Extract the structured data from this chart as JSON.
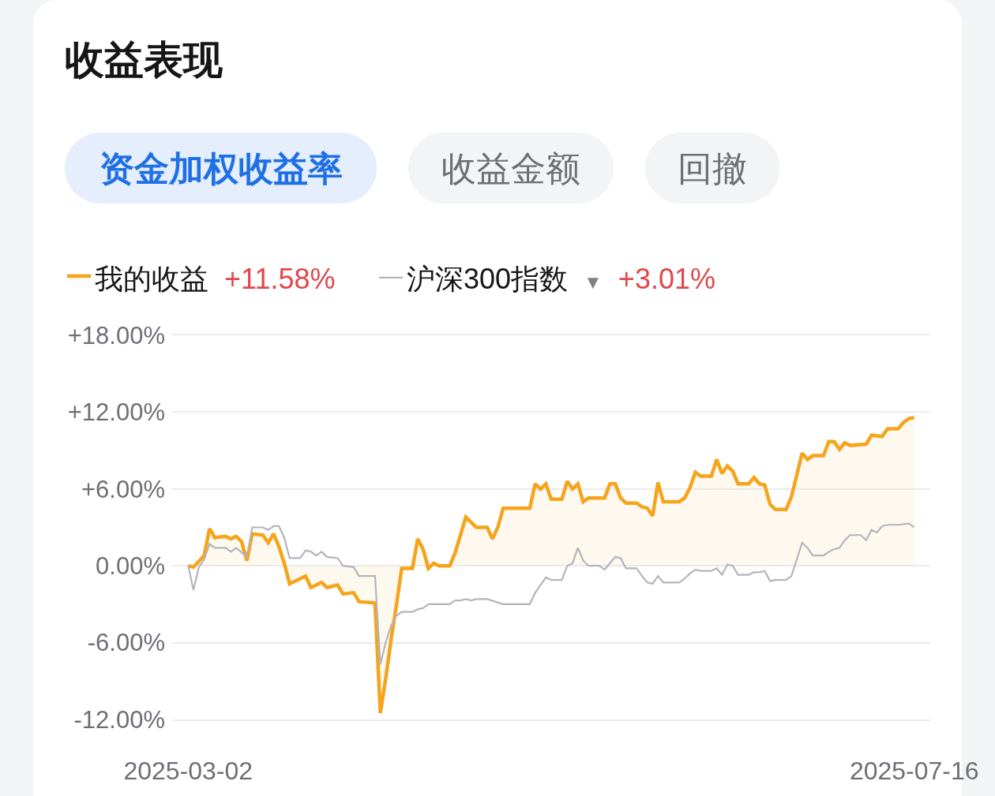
{
  "chart_data": {
    "type": "line",
    "title": "收益表现",
    "annotations": [
      "资金加权收益率",
      "收益金额",
      "回撤",
      "+11.58%",
      "▼",
      "+3.01%"
    ],
    "xlim": [
      "2025-02-27",
      "2025-07-19"
    ],
    "xticks": [
      "2025-03-02",
      "2025-07-16"
    ],
    "ylim": [
      -12,
      18
    ],
    "yticks": [
      {
        "value": 18,
        "label": "+18.00%"
      },
      {
        "value": 12,
        "label": "+12.00%"
      },
      {
        "value": 6,
        "label": "+6.00%"
      },
      {
        "value": 0,
        "label": "0.00%"
      },
      {
        "value": -6,
        "label": "-6.00%"
      },
      {
        "value": -12,
        "label": "-12.00%"
      }
    ],
    "grid": "y",
    "legend": "top left",
    "marker": "none",
    "line_style": "solid",
    "series": [
      {
        "name": "我的收益",
        "type": "area",
        "color": "#f5a41c",
        "x": [
          "2025-03-02",
          "2025-03-03",
          "2025-03-05",
          "2025-03-06",
          "2025-03-07",
          "2025-03-09",
          "2025-03-10",
          "2025-03-11",
          "2025-03-12",
          "2025-03-13",
          "2025-03-14",
          "2025-03-16",
          "2025-03-17",
          "2025-03-18",
          "2025-03-19",
          "2025-03-20",
          "2025-03-21",
          "2025-03-24",
          "2025-03-25",
          "2025-03-27",
          "2025-03-28",
          "2025-03-30",
          "2025-03-31",
          "2025-04-02",
          "2025-04-03",
          "2025-04-06",
          "2025-04-07",
          "2025-04-08",
          "2025-04-09",
          "2025-04-10",
          "2025-04-11",
          "2025-04-13",
          "2025-04-14",
          "2025-04-15",
          "2025-04-16",
          "2025-04-17",
          "2025-04-18",
          "2025-04-20",
          "2025-04-21",
          "2025-04-22",
          "2025-04-23",
          "2025-04-24",
          "2025-04-25",
          "2025-04-27",
          "2025-04-28",
          "2025-04-29",
          "2025-04-30",
          "2025-05-05",
          "2025-05-06",
          "2025-05-07",
          "2025-05-08",
          "2025-05-09",
          "2025-05-11",
          "2025-05-12",
          "2025-05-13",
          "2025-05-14",
          "2025-05-15",
          "2025-05-16",
          "2025-05-19",
          "2025-05-20",
          "2025-05-21",
          "2025-05-22",
          "2025-05-23",
          "2025-05-25",
          "2025-05-26",
          "2025-05-27",
          "2025-05-28",
          "2025-05-29",
          "2025-05-30",
          "2025-06-02",
          "2025-06-03",
          "2025-06-04",
          "2025-06-05",
          "2025-06-06",
          "2025-06-08",
          "2025-06-09",
          "2025-06-10",
          "2025-06-11",
          "2025-06-12",
          "2025-06-13",
          "2025-06-15",
          "2025-06-16",
          "2025-06-17",
          "2025-06-18",
          "2025-06-19",
          "2025-06-20",
          "2025-06-22",
          "2025-06-23",
          "2025-06-24",
          "2025-06-25",
          "2025-06-26",
          "2025-06-27",
          "2025-06-29",
          "2025-06-30",
          "2025-07-01",
          "2025-07-02",
          "2025-07-03",
          "2025-07-04",
          "2025-07-07",
          "2025-07-08",
          "2025-07-10",
          "2025-07-11",
          "2025-07-13",
          "2025-07-14",
          "2025-07-15",
          "2025-07-16"
        ],
        "values": [
          0.0,
          -0.1,
          0.8,
          2.9,
          2.2,
          2.3,
          2.1,
          2.3,
          1.9,
          0.4,
          2.5,
          2.4,
          1.8,
          2.5,
          1.5,
          0.2,
          -1.4,
          -0.8,
          -1.7,
          -1.3,
          -1.7,
          -1.5,
          -2.2,
          -2.1,
          -2.8,
          -2.9,
          -11.5,
          -8.8,
          -5.8,
          -3.1,
          -0.2,
          -0.2,
          2.1,
          1.3,
          -0.2,
          0.2,
          0.0,
          0.0,
          1.0,
          2.4,
          3.8,
          3.4,
          3.0,
          3.0,
          2.1,
          3.0,
          4.5,
          4.5,
          6.4,
          6.0,
          6.4,
          5.2,
          5.2,
          6.6,
          6.0,
          6.4,
          5.0,
          5.3,
          5.3,
          6.4,
          6.4,
          5.3,
          4.9,
          4.9,
          4.6,
          4.5,
          3.9,
          6.5,
          5.0,
          5.0,
          5.3,
          6.1,
          7.3,
          7.0,
          7.0,
          8.3,
          7.2,
          7.8,
          7.4,
          6.4,
          6.4,
          6.9,
          6.4,
          6.3,
          4.8,
          4.4,
          4.4,
          5.4,
          7.1,
          8.8,
          8.3,
          8.6,
          8.6,
          9.7,
          9.7,
          9.1,
          9.6,
          9.4,
          9.5,
          10.2,
          10.1,
          10.7,
          10.7,
          11.2,
          11.5,
          11.58
        ]
      },
      {
        "name": "沪深300指数",
        "color": "#b3b5bc",
        "x": [
          "2025-03-02",
          "2025-03-03",
          "2025-03-04",
          "2025-03-05",
          "2025-03-06",
          "2025-03-07",
          "2025-03-09",
          "2025-03-10",
          "2025-03-11",
          "2025-03-13",
          "2025-03-14",
          "2025-03-16",
          "2025-03-17",
          "2025-03-18",
          "2025-03-19",
          "2025-03-20",
          "2025-03-21",
          "2025-03-23",
          "2025-03-24",
          "2025-03-25",
          "2025-03-26",
          "2025-03-27",
          "2025-03-28",
          "2025-03-30",
          "2025-03-31",
          "2025-04-02",
          "2025-04-03",
          "2025-04-06",
          "2025-04-07",
          "2025-04-08",
          "2025-04-09",
          "2025-04-10",
          "2025-04-11",
          "2025-04-13",
          "2025-04-14",
          "2025-04-15",
          "2025-04-16",
          "2025-04-20",
          "2025-04-21",
          "2025-04-22",
          "2025-04-23",
          "2025-04-24",
          "2025-04-25",
          "2025-04-27",
          "2025-04-30",
          "2025-05-05",
          "2025-05-06",
          "2025-05-07",
          "2025-05-08",
          "2025-05-09",
          "2025-05-11",
          "2025-05-12",
          "2025-05-13",
          "2025-05-14",
          "2025-05-15",
          "2025-05-16",
          "2025-05-18",
          "2025-05-19",
          "2025-05-20",
          "2025-05-21",
          "2025-05-22",
          "2025-05-23",
          "2025-05-25",
          "2025-05-26",
          "2025-05-27",
          "2025-05-28",
          "2025-05-29",
          "2025-05-30",
          "2025-06-02",
          "2025-06-03",
          "2025-06-04",
          "2025-06-05",
          "2025-06-06",
          "2025-06-08",
          "2025-06-09",
          "2025-06-10",
          "2025-06-11",
          "2025-06-12",
          "2025-06-13",
          "2025-06-15",
          "2025-06-16",
          "2025-06-17",
          "2025-06-18",
          "2025-06-19",
          "2025-06-20",
          "2025-06-22",
          "2025-06-23",
          "2025-06-25",
          "2025-06-26",
          "2025-06-27",
          "2025-06-29",
          "2025-06-30",
          "2025-07-01",
          "2025-07-02",
          "2025-07-03",
          "2025-07-04",
          "2025-07-06",
          "2025-07-07",
          "2025-07-08",
          "2025-07-09",
          "2025-07-10",
          "2025-07-11",
          "2025-07-13",
          "2025-07-15",
          "2025-07-16"
        ],
        "values": [
          0.0,
          -1.9,
          -0.1,
          0.5,
          1.7,
          1.4,
          1.4,
          1.1,
          1.4,
          0.7,
          3.0,
          3.0,
          2.8,
          3.1,
          3.1,
          2.2,
          0.6,
          0.6,
          1.2,
          1.1,
          0.8,
          1.1,
          0.7,
          0.6,
          0.0,
          -0.1,
          -0.8,
          -0.8,
          -7.7,
          -6.0,
          -4.7,
          -3.9,
          -3.6,
          -3.6,
          -3.4,
          -3.3,
          -3.0,
          -3.0,
          -2.7,
          -2.7,
          -2.6,
          -2.7,
          -2.6,
          -2.6,
          -3.0,
          -3.0,
          -2.1,
          -1.5,
          -0.9,
          -1.1,
          -1.1,
          0.0,
          0.2,
          1.4,
          0.4,
          0.0,
          0.0,
          -0.3,
          0.2,
          0.7,
          0.6,
          -0.2,
          -0.2,
          -0.8,
          -1.3,
          -1.4,
          -0.8,
          -1.3,
          -1.3,
          -1.0,
          -0.6,
          -0.3,
          -0.4,
          -0.4,
          -0.2,
          -0.7,
          0.1,
          0.0,
          -0.7,
          -0.7,
          -0.5,
          -0.5,
          -0.4,
          -1.2,
          -1.1,
          -1.1,
          -0.8,
          1.8,
          1.4,
          0.8,
          0.8,
          1.1,
          1.3,
          1.4,
          2.0,
          2.4,
          2.4,
          2.0,
          2.8,
          2.6,
          3.1,
          3.2,
          3.2,
          3.3,
          3.01
        ]
      }
    ]
  }
}
